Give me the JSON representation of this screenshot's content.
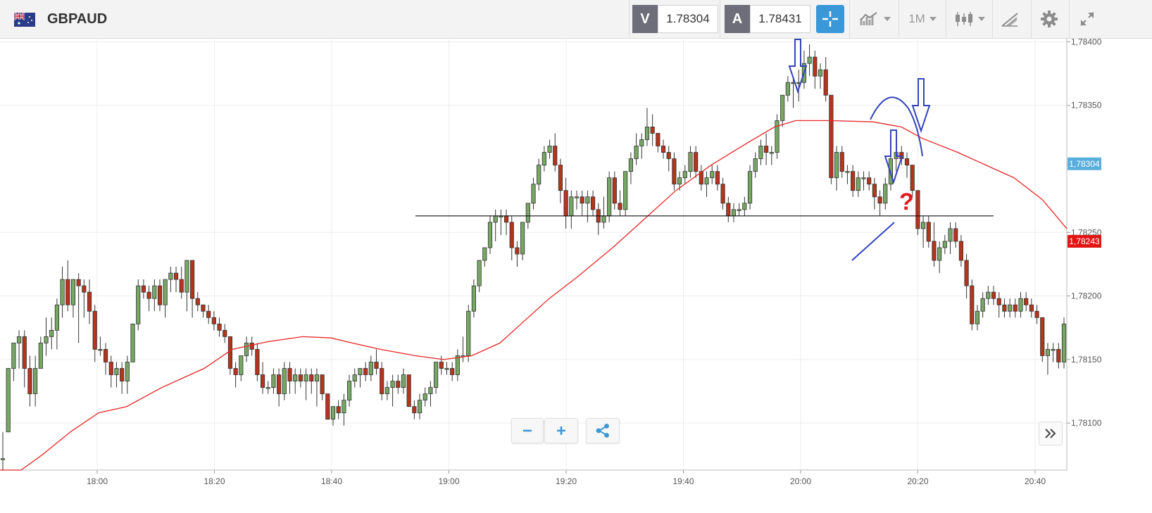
{
  "header": {
    "symbol": "GBPAUD",
    "sell_letter": "V",
    "sell_price": "1.78304",
    "buy_letter": "A",
    "buy_price": "1.78431",
    "timeframe": "1M"
  },
  "icons": {
    "flag": "gb-au-flag-icon",
    "crosshair": "crosshair-icon",
    "chart_type": "line-chart-icon",
    "candles": "candlestick-icon",
    "draw": "drawing-tools-icon",
    "settings": "gear-icon",
    "fullscreen": "expand-icon",
    "zoom_out": "minus-icon",
    "zoom_in": "plus-icon",
    "share": "share-icon",
    "scroll": "double-chevron-right-icon"
  },
  "chart_data": {
    "type": "candlestick",
    "x_ticks": [
      "18:00",
      "18:20",
      "18:40",
      "19:00",
      "19:20",
      "19:40",
      "20:00",
      "20:20",
      "20:40"
    ],
    "y_ticks": [
      "1,78100",
      "1,78150",
      "1,78200",
      "1,78250",
      "1,78350",
      "1,78400"
    ],
    "ylim": [
      1.78063,
      1.78403
    ],
    "current_bid_label": "1,78304",
    "current_bid": 1.78304,
    "last_price_label": "1,78243",
    "last_price": 1.78243,
    "support_level": 1.78263,
    "annotation_question": "?",
    "colors": {
      "up": "#77a764",
      "down": "#b5341c",
      "ma": "#e82626",
      "annotation": "#3344bb",
      "question": "#e01b1b"
    },
    "candles": [
      [
        1.78072,
        1.78093,
        1.78063,
        1.78072
      ],
      [
        1.78093,
        1.78143,
        1.78093,
        1.78143
      ],
      [
        1.78143,
        1.78163,
        1.78133,
        1.78163
      ],
      [
        1.78163,
        1.78173,
        1.78143,
        1.78168
      ],
      [
        1.78168,
        1.78173,
        1.78128,
        1.78143
      ],
      [
        1.78143,
        1.78153,
        1.78113,
        1.78123
      ],
      [
        1.78123,
        1.78153,
        1.78113,
        1.78143
      ],
      [
        1.78143,
        1.78168,
        1.78143,
        1.78163
      ],
      [
        1.78163,
        1.78183,
        1.78153,
        1.78168
      ],
      [
        1.78168,
        1.78183,
        1.78158,
        1.78173
      ],
      [
        1.78173,
        1.78198,
        1.78158,
        1.78193
      ],
      [
        1.78193,
        1.78223,
        1.78183,
        1.78213
      ],
      [
        1.78213,
        1.78228,
        1.78188,
        1.78193
      ],
      [
        1.78193,
        1.78213,
        1.78183,
        1.78213
      ],
      [
        1.78213,
        1.78218,
        1.78163,
        1.78208
      ],
      [
        1.78208,
        1.78213,
        1.78183,
        1.78203
      ],
      [
        1.78203,
        1.78213,
        1.78178,
        1.78188
      ],
      [
        1.78188,
        1.78193,
        1.78148,
        1.78158
      ],
      [
        1.78158,
        1.78168,
        1.78153,
        1.78158
      ],
      [
        1.78158,
        1.78163,
        1.78138,
        1.78148
      ],
      [
        1.78148,
        1.78153,
        1.78128,
        1.78138
      ],
      [
        1.78138,
        1.78148,
        1.78128,
        1.78143
      ],
      [
        1.78143,
        1.78148,
        1.78123,
        1.78133
      ],
      [
        1.78133,
        1.78153,
        1.78123,
        1.78148
      ],
      [
        1.78148,
        1.78178,
        1.78148,
        1.78178
      ],
      [
        1.78178,
        1.78213,
        1.78173,
        1.78208
      ],
      [
        1.78208,
        1.78213,
        1.78198,
        1.78203
      ],
      [
        1.78203,
        1.78208,
        1.78188,
        1.78198
      ],
      [
        1.78198,
        1.78213,
        1.78188,
        1.78208
      ],
      [
        1.78208,
        1.78213,
        1.78188,
        1.78193
      ],
      [
        1.78193,
        1.78213,
        1.78183,
        1.78213
      ],
      [
        1.78213,
        1.78223,
        1.78203,
        1.78218
      ],
      [
        1.78218,
        1.78223,
        1.78203,
        1.78213
      ],
      [
        1.78213,
        1.78223,
        1.78198,
        1.78203
      ],
      [
        1.78203,
        1.78228,
        1.78188,
        1.78228
      ],
      [
        1.78228,
        1.78228,
        1.78183,
        1.78198
      ],
      [
        1.78198,
        1.78203,
        1.78188,
        1.78193
      ],
      [
        1.78193,
        1.78193,
        1.78183,
        1.78188
      ],
      [
        1.78188,
        1.78193,
        1.78178,
        1.78183
      ],
      [
        1.78183,
        1.78188,
        1.78173,
        1.78178
      ],
      [
        1.78178,
        1.78183,
        1.78168,
        1.78173
      ],
      [
        1.78173,
        1.78178,
        1.78163,
        1.78168
      ],
      [
        1.78168,
        1.78168,
        1.78138,
        1.78143
      ],
      [
        1.78143,
        1.78148,
        1.78128,
        1.78138
      ],
      [
        1.78138,
        1.78153,
        1.78133,
        1.78153
      ],
      [
        1.78153,
        1.78168,
        1.78148,
        1.78163
      ],
      [
        1.78163,
        1.78168,
        1.78153,
        1.78158
      ],
      [
        1.78158,
        1.78163,
        1.78133,
        1.78138
      ],
      [
        1.78138,
        1.78148,
        1.78123,
        1.78128
      ],
      [
        1.78128,
        1.78133,
        1.78123,
        1.78128
      ],
      [
        1.78128,
        1.78143,
        1.78123,
        1.78138
      ],
      [
        1.78138,
        1.78143,
        1.78113,
        1.78123
      ],
      [
        1.78123,
        1.78148,
        1.78118,
        1.78143
      ],
      [
        1.78143,
        1.78148,
        1.78123,
        1.78133
      ],
      [
        1.78133,
        1.78143,
        1.78123,
        1.78138
      ],
      [
        1.78138,
        1.78143,
        1.78128,
        1.78133
      ],
      [
        1.78133,
        1.78143,
        1.78118,
        1.78138
      ],
      [
        1.78138,
        1.78143,
        1.78123,
        1.78133
      ],
      [
        1.78133,
        1.78143,
        1.78113,
        1.78138
      ],
      [
        1.78138,
        1.78138,
        1.78118,
        1.78123
      ],
      [
        1.78123,
        1.78123,
        1.78103,
        1.78103
      ],
      [
        1.78103,
        1.78113,
        1.78098,
        1.78113
      ],
      [
        1.78113,
        1.78118,
        1.78103,
        1.78108
      ],
      [
        1.78108,
        1.78123,
        1.78098,
        1.78118
      ],
      [
        1.78118,
        1.78138,
        1.78113,
        1.78133
      ],
      [
        1.78133,
        1.78143,
        1.78128,
        1.78138
      ],
      [
        1.78138,
        1.78143,
        1.78128,
        1.78143
      ],
      [
        1.78143,
        1.78148,
        1.78133,
        1.78138
      ],
      [
        1.78138,
        1.78153,
        1.78133,
        1.78148
      ],
      [
        1.78148,
        1.78158,
        1.78138,
        1.78143
      ],
      [
        1.78143,
        1.78148,
        1.78118,
        1.78123
      ],
      [
        1.78123,
        1.78133,
        1.78118,
        1.78128
      ],
      [
        1.78128,
        1.78138,
        1.78113,
        1.78133
      ],
      [
        1.78133,
        1.78138,
        1.78123,
        1.78128
      ],
      [
        1.78128,
        1.78143,
        1.78123,
        1.78138
      ],
      [
        1.78138,
        1.78138,
        1.78113,
        1.78113
      ],
      [
        1.78113,
        1.78118,
        1.78103,
        1.78108
      ],
      [
        1.78108,
        1.78123,
        1.78103,
        1.78118
      ],
      [
        1.78118,
        1.78128,
        1.78113,
        1.78123
      ],
      [
        1.78123,
        1.78133,
        1.78113,
        1.78128
      ],
      [
        1.78128,
        1.78148,
        1.78123,
        1.78148
      ],
      [
        1.78148,
        1.78153,
        1.78138,
        1.78143
      ],
      [
        1.78143,
        1.78148,
        1.78138,
        1.78143
      ],
      [
        1.78143,
        1.78148,
        1.78133,
        1.78138
      ],
      [
        1.78138,
        1.78158,
        1.78133,
        1.78153
      ],
      [
        1.78153,
        1.78168,
        1.78148,
        1.78153
      ],
      [
        1.78153,
        1.78193,
        1.78148,
        1.78188
      ],
      [
        1.78188,
        1.78213,
        1.78183,
        1.78208
      ],
      [
        1.78208,
        1.78228,
        1.78203,
        1.78228
      ],
      [
        1.78228,
        1.78238,
        1.78223,
        1.78238
      ],
      [
        1.78238,
        1.78263,
        1.78233,
        1.78258
      ],
      [
        1.78258,
        1.78268,
        1.78243,
        1.78263
      ],
      [
        1.78263,
        1.78268,
        1.78248,
        1.78263
      ],
      [
        1.78263,
        1.78268,
        1.78248,
        1.78258
      ],
      [
        1.78258,
        1.78263,
        1.78228,
        1.78238
      ],
      [
        1.78238,
        1.78243,
        1.78223,
        1.78233
      ],
      [
        1.78233,
        1.78258,
        1.78228,
        1.78258
      ],
      [
        1.78258,
        1.78273,
        1.78253,
        1.78273
      ],
      [
        1.78273,
        1.78293,
        1.78268,
        1.78288
      ],
      [
        1.78288,
        1.78308,
        1.78283,
        1.78303
      ],
      [
        1.78303,
        1.78318,
        1.78298,
        1.78313
      ],
      [
        1.78313,
        1.78323,
        1.78308,
        1.78318
      ],
      [
        1.78318,
        1.78328,
        1.78298,
        1.78303
      ],
      [
        1.78303,
        1.78308,
        1.78273,
        1.78283
      ],
      [
        1.78283,
        1.78293,
        1.78253,
        1.78263
      ],
      [
        1.78263,
        1.78283,
        1.78253,
        1.78278
      ],
      [
        1.78278,
        1.78283,
        1.78268,
        1.78278
      ],
      [
        1.78278,
        1.78283,
        1.78263,
        1.78273
      ],
      [
        1.78273,
        1.78283,
        1.78258,
        1.78278
      ],
      [
        1.78278,
        1.78283,
        1.78263,
        1.78268
      ],
      [
        1.78268,
        1.78273,
        1.78248,
        1.78258
      ],
      [
        1.78258,
        1.78278,
        1.78253,
        1.78263
      ],
      [
        1.78263,
        1.78298,
        1.78258,
        1.78293
      ],
      [
        1.78293,
        1.78298,
        1.78268,
        1.78273
      ],
      [
        1.78273,
        1.78283,
        1.78263,
        1.78268
      ],
      [
        1.78268,
        1.78298,
        1.78263,
        1.78298
      ],
      [
        1.78298,
        1.78313,
        1.78288,
        1.78308
      ],
      [
        1.78308,
        1.78328,
        1.78303,
        1.78318
      ],
      [
        1.78318,
        1.78328,
        1.78308,
        1.78323
      ],
      [
        1.78323,
        1.78348,
        1.78318,
        1.78333
      ],
      [
        1.78333,
        1.78343,
        1.78318,
        1.78328
      ],
      [
        1.78328,
        1.78328,
        1.78313,
        1.78318
      ],
      [
        1.78318,
        1.78323,
        1.78308,
        1.78313
      ],
      [
        1.78313,
        1.78318,
        1.78298,
        1.78308
      ],
      [
        1.78308,
        1.78313,
        1.78283,
        1.78288
      ],
      [
        1.78288,
        1.78298,
        1.78283,
        1.78293
      ],
      [
        1.78293,
        1.78303,
        1.78288,
        1.78298
      ],
      [
        1.78298,
        1.78318,
        1.78293,
        1.78313
      ],
      [
        1.78313,
        1.78318,
        1.78293,
        1.78298
      ],
      [
        1.78298,
        1.78303,
        1.78283,
        1.78288
      ],
      [
        1.78288,
        1.78298,
        1.78278,
        1.78293
      ],
      [
        1.78293,
        1.78303,
        1.78288,
        1.78298
      ],
      [
        1.78298,
        1.78303,
        1.78283,
        1.78288
      ],
      [
        1.78288,
        1.78293,
        1.78268,
        1.78273
      ],
      [
        1.78273,
        1.78278,
        1.78258,
        1.78263
      ],
      [
        1.78263,
        1.78273,
        1.78258,
        1.78268
      ],
      [
        1.78268,
        1.78273,
        1.78263,
        1.78268
      ],
      [
        1.78268,
        1.78278,
        1.78263,
        1.78273
      ],
      [
        1.78273,
        1.78303,
        1.78268,
        1.78298
      ],
      [
        1.78298,
        1.78313,
        1.78293,
        1.78308
      ],
      [
        1.78308,
        1.78323,
        1.78303,
        1.78318
      ],
      [
        1.78318,
        1.78328,
        1.78303,
        1.78313
      ],
      [
        1.78313,
        1.78318,
        1.78303,
        1.78313
      ],
      [
        1.78313,
        1.78343,
        1.78308,
        1.78338
      ],
      [
        1.78338,
        1.78358,
        1.78333,
        1.78358
      ],
      [
        1.78358,
        1.78373,
        1.78353,
        1.78368
      ],
      [
        1.78368,
        1.78373,
        1.78348,
        1.78368
      ],
      [
        1.78368,
        1.78378,
        1.78353,
        1.78368
      ],
      [
        1.78368,
        1.78393,
        1.78363,
        1.78383
      ],
      [
        1.78383,
        1.78398,
        1.78373,
        1.78388
      ],
      [
        1.78388,
        1.78393,
        1.78363,
        1.78373
      ],
      [
        1.78373,
        1.78383,
        1.78363,
        1.78378
      ],
      [
        1.78378,
        1.78388,
        1.78353,
        1.78358
      ],
      [
        1.78358,
        1.78358,
        1.78288,
        1.78293
      ],
      [
        1.78293,
        1.78318,
        1.78283,
        1.78313
      ],
      [
        1.78313,
        1.78318,
        1.78293,
        1.78298
      ],
      [
        1.78298,
        1.78303,
        1.78288,
        1.78298
      ],
      [
        1.78298,
        1.78303,
        1.78278,
        1.78283
      ],
      [
        1.78283,
        1.78298,
        1.78278,
        1.78293
      ],
      [
        1.78293,
        1.78298,
        1.78283,
        1.78293
      ],
      [
        1.78293,
        1.78298,
        1.78283,
        1.78288
      ],
      [
        1.78288,
        1.78293,
        1.78268,
        1.78278
      ],
      [
        1.78278,
        1.78283,
        1.78263,
        1.78273
      ],
      [
        1.78273,
        1.78293,
        1.78268,
        1.78288
      ],
      [
        1.78288,
        1.78313,
        1.78283,
        1.78308
      ],
      [
        1.78308,
        1.78318,
        1.78298,
        1.78313
      ],
      [
        1.78313,
        1.78318,
        1.78303,
        1.78308
      ],
      [
        1.78308,
        1.78313,
        1.78293,
        1.78303
      ],
      [
        1.78303,
        1.78303,
        1.78278,
        1.78283
      ],
      [
        1.78283,
        1.78283,
        1.78248,
        1.78253
      ],
      [
        1.78253,
        1.78263,
        1.78238,
        1.78258
      ],
      [
        1.78258,
        1.78263,
        1.78238,
        1.78243
      ],
      [
        1.78243,
        1.78258,
        1.78223,
        1.78228
      ],
      [
        1.78228,
        1.78243,
        1.78218,
        1.78238
      ],
      [
        1.78238,
        1.78248,
        1.78233,
        1.78243
      ],
      [
        1.78243,
        1.78258,
        1.78233,
        1.78253
      ],
      [
        1.78253,
        1.78258,
        1.78238,
        1.78243
      ],
      [
        1.78243,
        1.78248,
        1.78223,
        1.78228
      ],
      [
        1.78228,
        1.78233,
        1.78198,
        1.78208
      ],
      [
        1.78208,
        1.78213,
        1.78173,
        1.78178
      ],
      [
        1.78178,
        1.78193,
        1.78173,
        1.78188
      ],
      [
        1.78188,
        1.78203,
        1.78183,
        1.78198
      ],
      [
        1.78198,
        1.78208,
        1.78193,
        1.78203
      ],
      [
        1.78203,
        1.78208,
        1.78193,
        1.78198
      ],
      [
        1.78198,
        1.78203,
        1.78183,
        1.78193
      ],
      [
        1.78193,
        1.78198,
        1.78183,
        1.78188
      ],
      [
        1.78188,
        1.78198,
        1.78183,
        1.78193
      ],
      [
        1.78193,
        1.78198,
        1.78183,
        1.78188
      ],
      [
        1.78188,
        1.78203,
        1.78183,
        1.78198
      ],
      [
        1.78198,
        1.78203,
        1.78188,
        1.78193
      ],
      [
        1.78193,
        1.78198,
        1.78183,
        1.78188
      ],
      [
        1.78188,
        1.78193,
        1.78178,
        1.78183
      ],
      [
        1.78183,
        1.78183,
        1.78148,
        1.78153
      ],
      [
        1.78153,
        1.78163,
        1.78138,
        1.78158
      ],
      [
        1.78158,
        1.78163,
        1.78148,
        1.78158
      ],
      [
        1.78158,
        1.78163,
        1.78143,
        1.78148
      ],
      [
        1.78148,
        1.78183,
        1.78143,
        1.78178
      ]
    ],
    "ma": [
      [
        0,
        1.78063
      ],
      [
        30,
        1.78063
      ],
      [
        60,
        1.78075
      ],
      [
        100,
        1.78093
      ],
      [
        140,
        1.78108
      ],
      [
        180,
        1.78113
      ],
      [
        230,
        1.78128
      ],
      [
        290,
        1.78143
      ],
      [
        330,
        1.78158
      ],
      [
        380,
        1.78164
      ],
      [
        430,
        1.78168
      ],
      [
        470,
        1.78167
      ],
      [
        500,
        1.78163
      ],
      [
        540,
        1.78158
      ],
      [
        590,
        1.78153
      ],
      [
        630,
        1.7815
      ],
      [
        670,
        1.78153
      ],
      [
        710,
        1.78163
      ],
      [
        740,
        1.78178
      ],
      [
        780,
        1.78198
      ],
      [
        820,
        1.78215
      ],
      [
        870,
        1.78238
      ],
      [
        910,
        1.78258
      ],
      [
        960,
        1.78283
      ],
      [
        1010,
        1.78303
      ],
      [
        1060,
        1.7832
      ],
      [
        1100,
        1.78333
      ],
      [
        1130,
        1.78338
      ],
      [
        1180,
        1.78338
      ],
      [
        1240,
        1.78337
      ],
      [
        1280,
        1.78333
      ],
      [
        1310,
        1.78324
      ],
      [
        1360,
        1.78313
      ],
      [
        1400,
        1.78303
      ],
      [
        1440,
        1.78293
      ],
      [
        1480,
        1.78276
      ],
      [
        1515,
        1.78253
      ]
    ]
  }
}
